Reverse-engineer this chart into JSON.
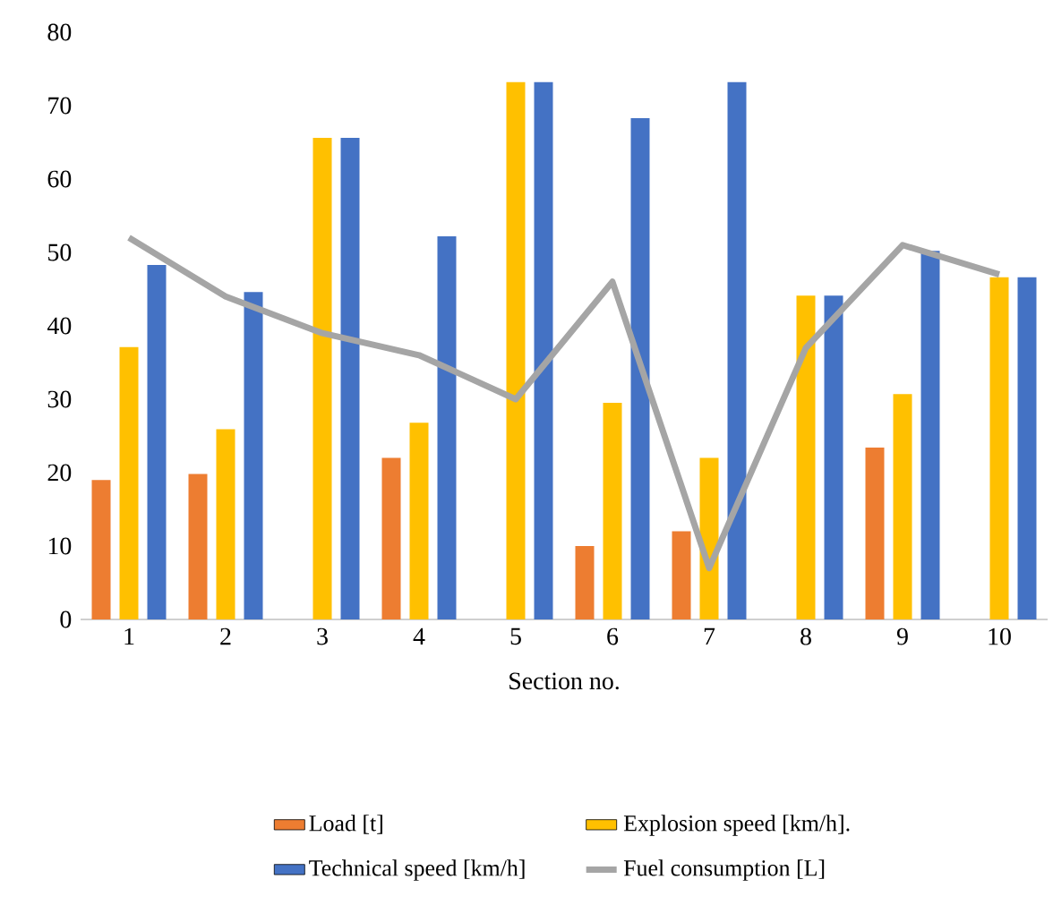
{
  "chart_data": {
    "type": "bar",
    "xlabel": "Section no.",
    "categories": [
      "1",
      "2",
      "3",
      "4",
      "5",
      "6",
      "7",
      "8",
      "9",
      "10"
    ],
    "series": [
      {
        "name": "Load [t]",
        "color": "#ed7d31",
        "values": [
          19,
          19.8,
          null,
          22,
          null,
          10,
          12,
          null,
          23.4,
          null
        ]
      },
      {
        "name": "Explosion speed [km/h].",
        "color": "#ffc000",
        "values": [
          37.1,
          25.9,
          65.6,
          26.8,
          73.2,
          29.5,
          22,
          44.1,
          30.7,
          46.6
        ]
      },
      {
        "name": "Technical speed [km/h]",
        "color": "#4472c4",
        "values": [
          48.3,
          44.6,
          65.6,
          52.2,
          73.2,
          68.3,
          73.2,
          44.1,
          50.2,
          46.6
        ]
      },
      {
        "name": "Fuel consumption [L]",
        "color": "#a5a5a5",
        "type": "line",
        "values": [
          52,
          44,
          39,
          36,
          30,
          46,
          7,
          37,
          51,
          47
        ]
      }
    ],
    "ylim": [
      0,
      80
    ],
    "yticks": [
      0,
      10,
      20,
      30,
      40,
      50,
      60,
      70,
      80
    ],
    "legend": "bottom",
    "grid": false
  }
}
